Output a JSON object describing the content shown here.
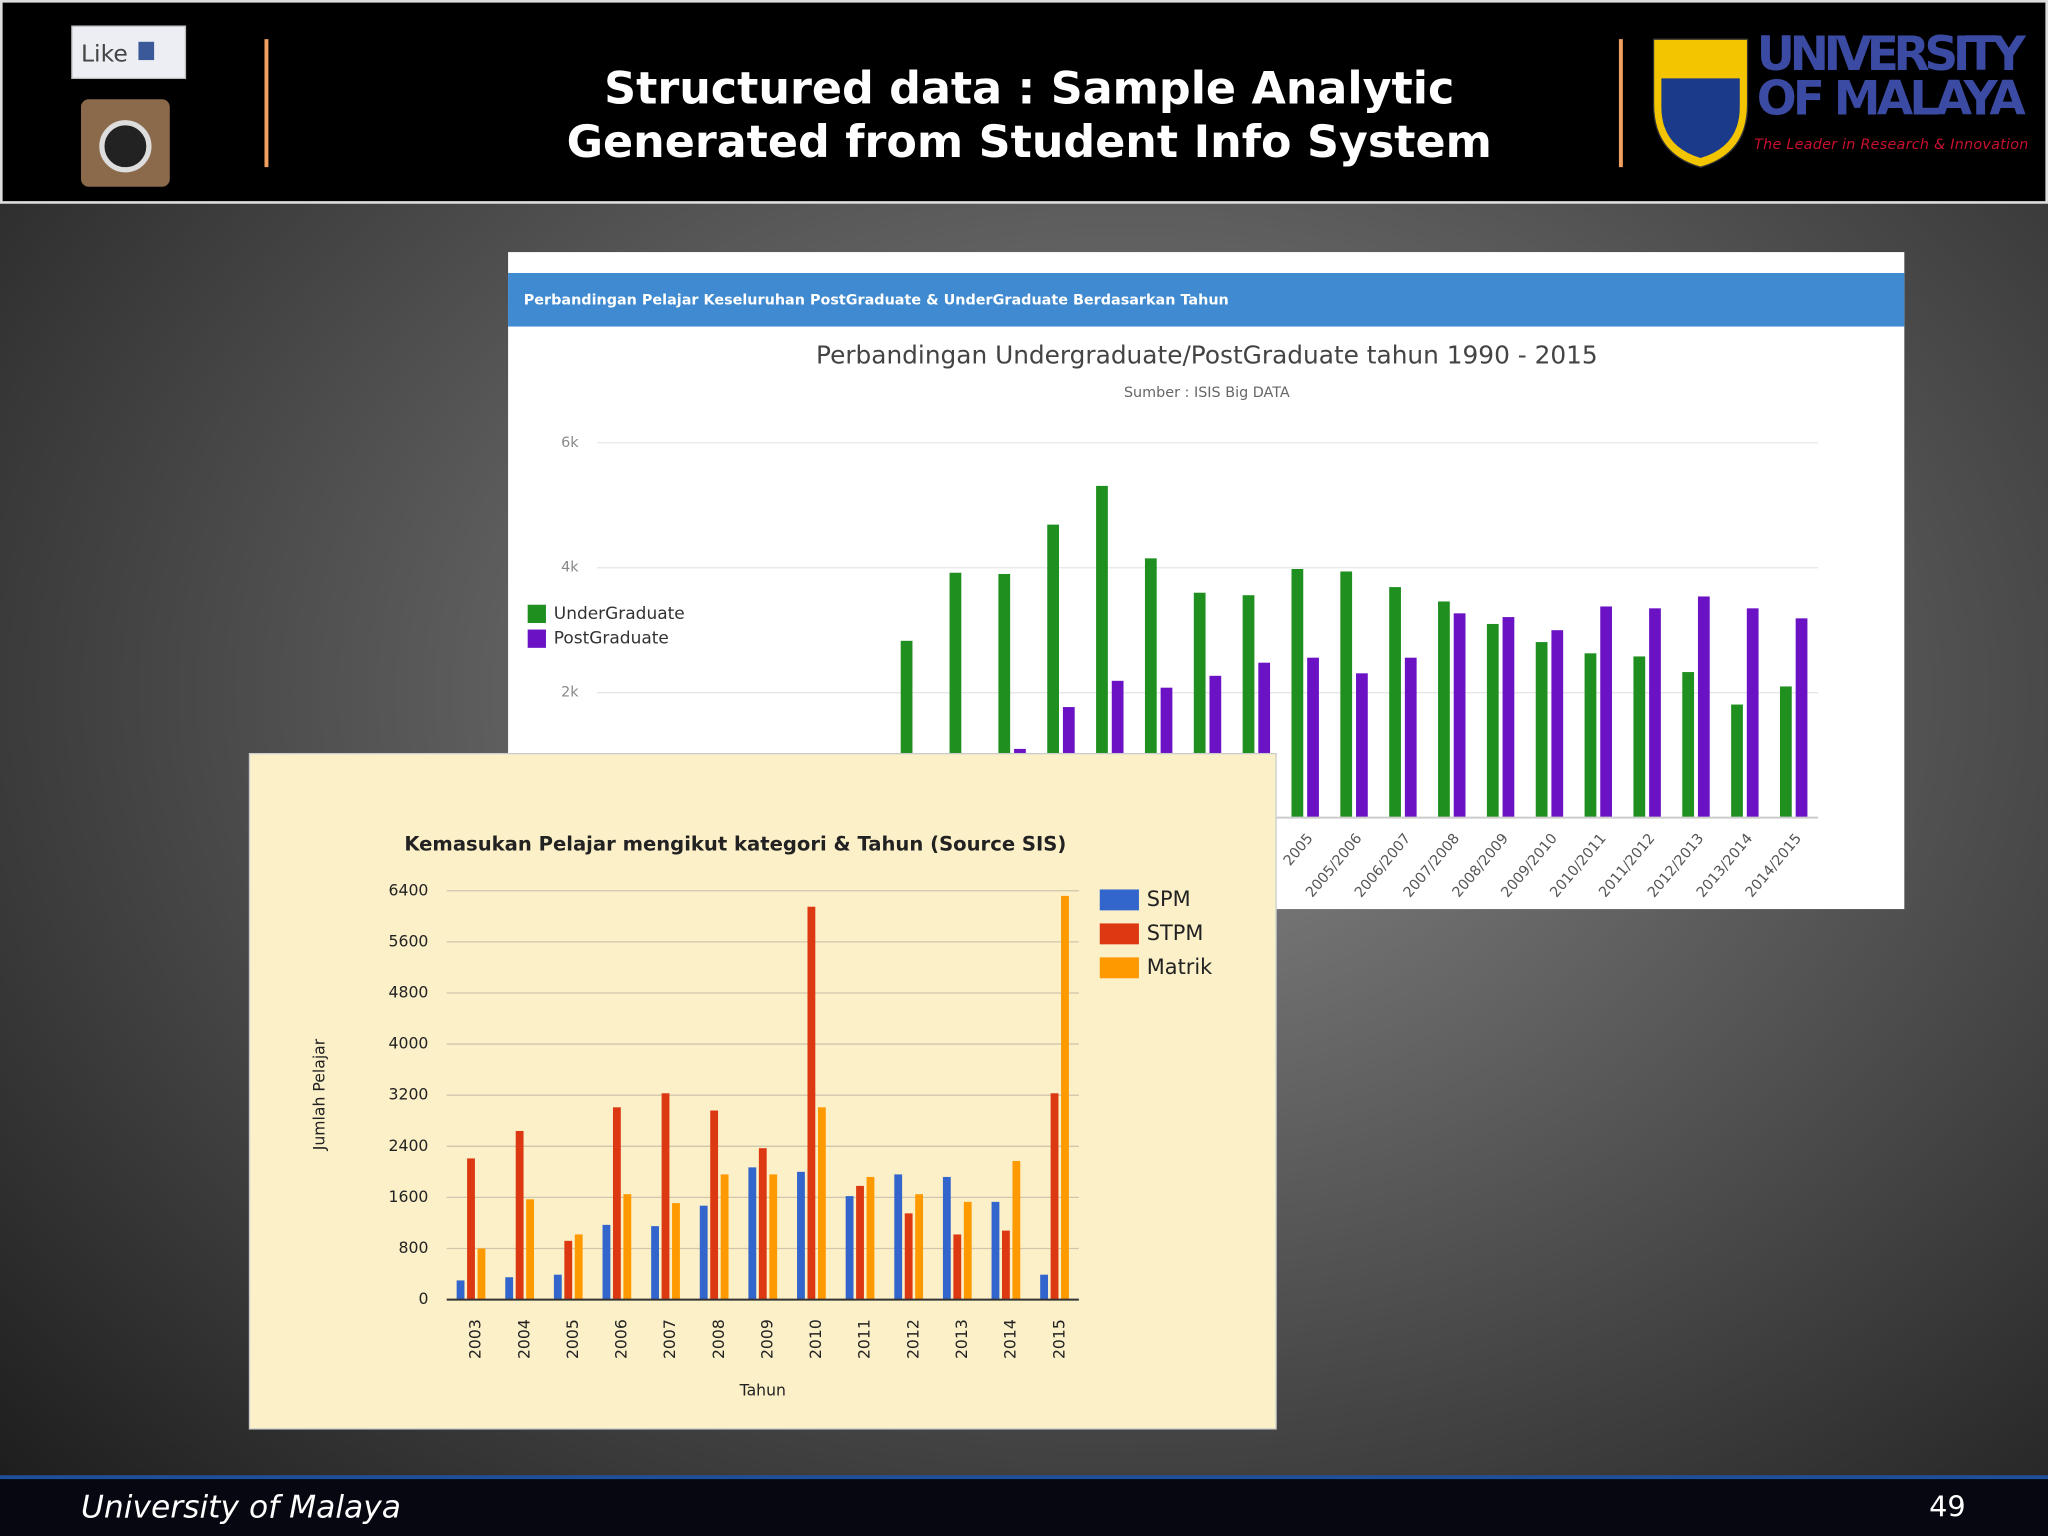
{
  "header": {
    "like": "Like",
    "title_lines": [
      "Structured data : Sample Analytic",
      "Generated from  Student Info System"
    ],
    "logo": [
      "UNIVERSITY",
      "OF MALAYA"
    ],
    "tagline": "The Leader in Research & Innovation"
  },
  "chart_data": [
    {
      "type": "bar",
      "panel_title": "Perbandingan Pelajar Keseluruhan PostGraduate & UnderGraduate Berdasarkan Tahun",
      "title": "Perbandingan Undergraduate/PostGraduate tahun 1990 - 2015",
      "subtitle": "Sumber : ISIS Big DATA",
      "categories": [
        null,
        null,
        null,
        null,
        null,
        null,
        null,
        null,
        null,
        null,
        null,
        null,
        null,
        null,
        "2005",
        "2005/2006",
        "2006/2007",
        "2007/2008",
        "2008/2009",
        "2009/2010",
        "2010/2011",
        "2011/2012",
        "2012/2013",
        "2013/2014",
        "2014/2015"
      ],
      "series": [
        {
          "name": "UnderGraduate",
          "color": "#1f8f1f",
          "values": [
            null,
            null,
            null,
            null,
            null,
            null,
            2830,
            3920,
            3900,
            4690,
            5310,
            4150,
            3600,
            3560,
            3980,
            3940,
            3690,
            3460,
            3100,
            2810,
            2630,
            2580,
            2330,
            1810,
            2100
          ]
        },
        {
          "name": "PostGraduate",
          "color": "#6a12c4",
          "values": [
            null,
            null,
            null,
            null,
            null,
            null,
            null,
            null,
            1100,
            1770,
            2190,
            2080,
            2270,
            2480,
            2560,
            2310,
            2560,
            3270,
            3210,
            3000,
            3380,
            3350,
            3540,
            3350,
            3190
          ]
        }
      ],
      "ylim": [
        0,
        6000
      ],
      "yticks": [
        {
          "value": 2000,
          "label": "2k"
        },
        {
          "value": 4000,
          "label": "4k"
        },
        {
          "value": 6000,
          "label": "6k"
        }
      ],
      "grid": true,
      "legend": "left"
    },
    {
      "type": "bar",
      "title": "Kemasukan Pelajar mengikut kategori & Tahun (Source SIS)",
      "xlabel": "Tahun",
      "ylabel": "Jumlah Pelajar",
      "categories": [
        "2003",
        "2004",
        "2005",
        "2006",
        "2007",
        "2008",
        "2009",
        "2010",
        "2011",
        "2012",
        "2013",
        "2014",
        "2015"
      ],
      "series": [
        {
          "name": "SPM",
          "color": "#3366cc",
          "values": [
            300,
            350,
            390,
            1170,
            1150,
            1470,
            2070,
            2000,
            1620,
            1960,
            1920,
            1530,
            390
          ]
        },
        {
          "name": "STPM",
          "color": "#dc3912",
          "values": [
            2210,
            2640,
            920,
            3010,
            3230,
            2960,
            2370,
            6150,
            1780,
            1350,
            1020,
            1080,
            3230
          ]
        },
        {
          "name": "Matrik",
          "color": "#ff9900",
          "values": [
            800,
            1570,
            1020,
            1650,
            1510,
            1960,
            1960,
            3010,
            1920,
            1650,
            1530,
            2170,
            6320
          ]
        }
      ],
      "ylim": [
        0,
        6400
      ],
      "yticks": [
        0,
        800,
        1600,
        2400,
        3200,
        4000,
        4800,
        5600,
        6400
      ],
      "grid": true,
      "legend": "right"
    }
  ],
  "footer": {
    "left": "University of Malaya",
    "page": "49"
  }
}
